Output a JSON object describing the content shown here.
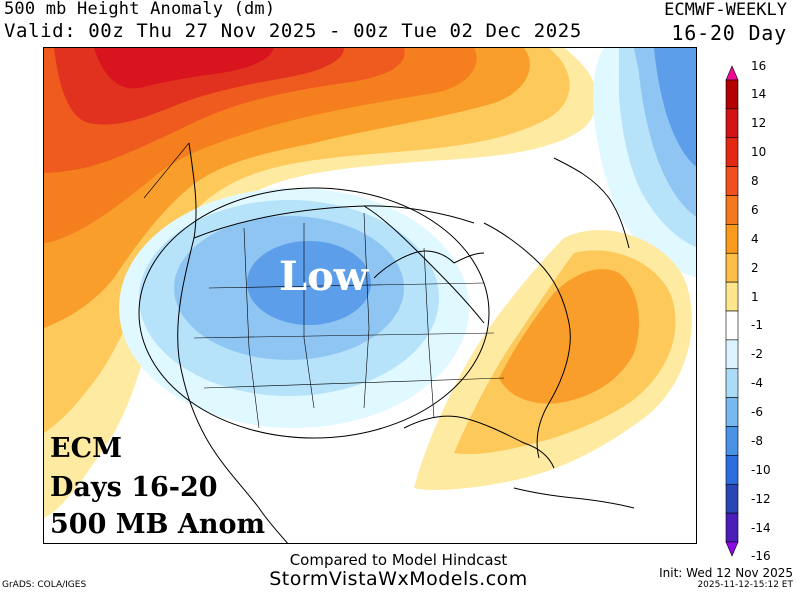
{
  "header": {
    "title_line1": "500 mb Height Anomaly (dm)",
    "title_line2": "Valid: 00z Thu 27 Nov 2025 - 00z Tue 02 Dec 2025",
    "model": "ECMWF-WEEKLY",
    "period": "16-20 Day"
  },
  "map": {
    "feature_label": "Low",
    "annotation_lines": [
      "ECM",
      "Days 16-20",
      "500 MB Anom"
    ],
    "colors": {
      "strong_pos": "#c40000",
      "pos_14": "#d8141e",
      "pos_10": "#e0321e",
      "pos_8": "#ef5a1e",
      "pos_6": "#f57e1e",
      "pos_4": "#f99e2a",
      "pos_2": "#fcc95a",
      "pos_1": "#feeaa0",
      "neutral": "#ffffff",
      "neg_1": "#e0f8ff",
      "neg_2": "#b6e2fa",
      "neg_4": "#8fc5f2",
      "neg_6": "#5d9eea",
      "neg_8": "#3b78de"
    }
  },
  "colorbar": {
    "labels": [
      "16",
      "14",
      "12",
      "10",
      "8",
      "6",
      "4",
      "2",
      "1",
      "-1",
      "-2",
      "-4",
      "-6",
      "-8",
      "-10",
      "-12",
      "-14",
      "-16"
    ],
    "colors": [
      "#f20a96",
      "#b40000",
      "#d21414",
      "#e32814",
      "#f0501e",
      "#f5781e",
      "#f99a1e",
      "#fcbe46",
      "#fee68c",
      "#ffffff",
      "#dcf4ff",
      "#aadcf8",
      "#78b8f0",
      "#4a92e6",
      "#2d6ede",
      "#2846b4",
      "#4b1eb9",
      "#8c0ae6"
    ]
  },
  "footer": {
    "line1": "Compared to Model Hindcast",
    "line2": "StormVistaWxModels.com",
    "init": "Init: Wed 12 Nov 2025",
    "stamp": "2025-11-12-15:12 ET",
    "grads": "GrADS: COLA/IGES"
  }
}
